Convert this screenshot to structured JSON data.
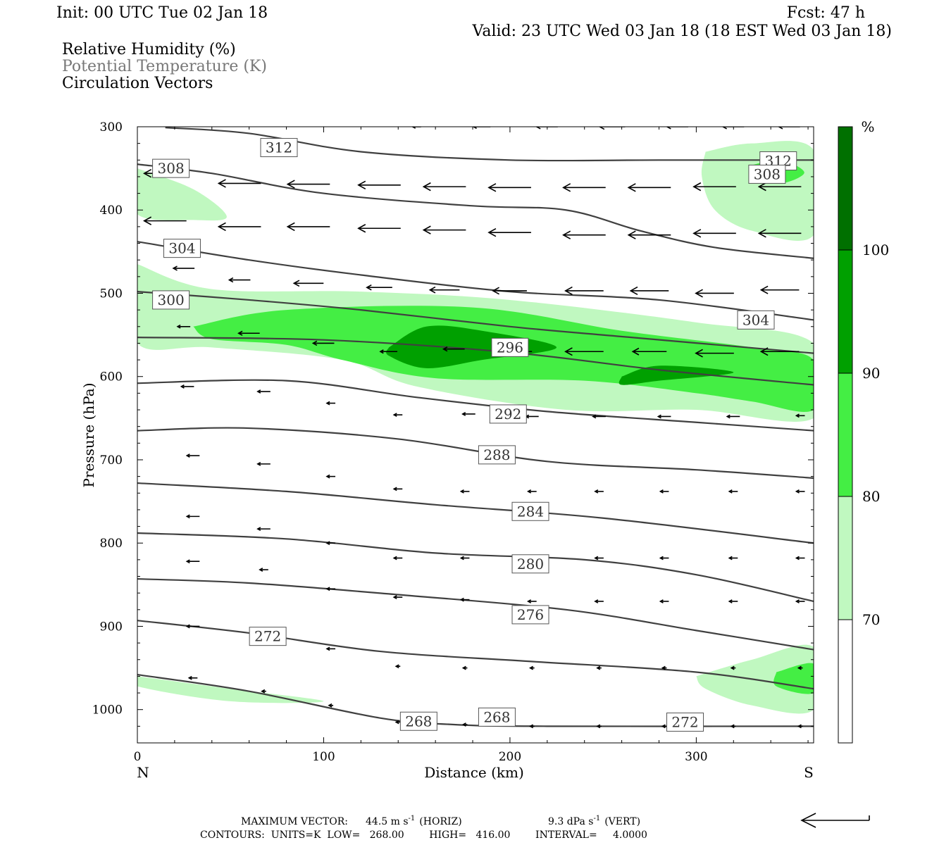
{
  "header": {
    "init": "Init: 00 UTC Tue 02 Jan 18",
    "fcst": "Fcst:   47 h",
    "valid": "Valid: 23 UTC Wed 03 Jan 18 (18 EST Wed 03 Jan 18)",
    "fields": [
      "Relative Humidity (%)",
      "Potential Temperature (K)",
      "Circulation Vectors"
    ]
  },
  "colors": {
    "rh_70": "#c0f8c0",
    "rh_80": "#44ee44",
    "rh_90": "#00a000",
    "rh_100": "#007000",
    "theta_line": "#404040",
    "frame": "#000000"
  },
  "footer": {
    "max_vector_label": "MAXIMUM VECTOR:",
    "horiz_value": "44.5 m s",
    "horiz_unit": "(HORIZ)",
    "vert_value": "9.3 dPa s",
    "vert_unit": "(VERT)",
    "sup": "-1",
    "contours_line": "CONTOURS:  UNITS=K  LOW=   268.00        HIGH=   416.00        INTERVAL=     4.0000"
  },
  "chart_data": {
    "type": "contour",
    "xlabel": "Distance (km)",
    "ylabel": "Pressure (hPa)",
    "xlim": [
      0,
      363
    ],
    "ylim": [
      1040,
      300
    ],
    "x_ticks": [
      0,
      100,
      200,
      300
    ],
    "y_ticks": [
      300,
      400,
      500,
      600,
      700,
      800,
      900,
      1000
    ],
    "x_end_labels": {
      "left": "N",
      "right": "S"
    },
    "colorbar": {
      "unit": "%",
      "levels": [
        70,
        80,
        90,
        100
      ],
      "tick_labels": [
        "70",
        "80",
        "90",
        "100"
      ]
    },
    "theta_contours": [
      {
        "value": 312,
        "label": "312",
        "label_at": [
          76,
          325
        ],
        "points": [
          [
            15,
            301
          ],
          [
            60,
            308
          ],
          [
            120,
            330
          ],
          [
            200,
            340
          ],
          [
            280,
            340
          ],
          [
            363,
            340
          ]
        ]
      },
      {
        "value": 312,
        "label": "312",
        "label_at": [
          344,
          341
        ],
        "points": []
      },
      {
        "value": 308,
        "label": "308",
        "label_at": [
          18,
          350
        ],
        "points": [
          [
            0,
            345
          ],
          [
            40,
            356
          ],
          [
            100,
            380
          ],
          [
            180,
            395
          ],
          [
            230,
            400
          ],
          [
            270,
            425
          ],
          [
            310,
            445
          ],
          [
            363,
            458
          ]
        ]
      },
      {
        "value": 308,
        "label": "308",
        "label_at": [
          338,
          357
        ],
        "points": []
      },
      {
        "value": 304,
        "label": "304",
        "label_at": [
          24,
          446
        ],
        "points": [
          [
            0,
            438
          ],
          [
            60,
            460
          ],
          [
            120,
            478
          ],
          [
            200,
            498
          ],
          [
            280,
            508
          ],
          [
            363,
            532
          ]
        ]
      },
      {
        "value": 304,
        "label": "304",
        "label_at": [
          332,
          532
        ],
        "points": []
      },
      {
        "value": 300,
        "label": "300",
        "label_at": [
          18,
          508
        ],
        "points": [
          [
            0,
            498
          ],
          [
            60,
            508
          ],
          [
            120,
            520
          ],
          [
            200,
            540
          ],
          [
            260,
            552
          ],
          [
            363,
            572
          ]
        ]
      },
      {
        "value": 296,
        "label": "296",
        "label_at": [
          200,
          565
        ],
        "points": [
          [
            0,
            553
          ],
          [
            100,
            556
          ],
          [
            200,
            571
          ],
          [
            280,
            592
          ],
          [
            363,
            610
          ]
        ]
      },
      {
        "value": 292,
        "label": "292",
        "label_at": [
          199,
          645
        ],
        "points": [
          [
            0,
            608
          ],
          [
            80,
            605
          ],
          [
            150,
            625
          ],
          [
            220,
            642
          ],
          [
            300,
            655
          ],
          [
            363,
            665
          ]
        ]
      },
      {
        "value": 288,
        "label": "288",
        "label_at": [
          193,
          694
        ],
        "points": [
          [
            0,
            665
          ],
          [
            60,
            662
          ],
          [
            140,
            675
          ],
          [
            220,
            702
          ],
          [
            300,
            712
          ],
          [
            363,
            722
          ]
        ]
      },
      {
        "value": 284,
        "label": "284",
        "label_at": [
          211,
          762
        ],
        "points": [
          [
            0,
            728
          ],
          [
            80,
            738
          ],
          [
            160,
            754
          ],
          [
            250,
            770
          ],
          [
            363,
            800
          ]
        ]
      },
      {
        "value": 280,
        "label": "280",
        "label_at": [
          211,
          825
        ],
        "points": [
          [
            0,
            788
          ],
          [
            80,
            795
          ],
          [
            160,
            812
          ],
          [
            240,
            820
          ],
          [
            300,
            838
          ],
          [
            363,
            870
          ]
        ]
      },
      {
        "value": 276,
        "label": "276",
        "label_at": [
          211,
          886
        ],
        "points": [
          [
            0,
            843
          ],
          [
            60,
            848
          ],
          [
            140,
            862
          ],
          [
            230,
            880
          ],
          [
            300,
            905
          ],
          [
            363,
            928
          ]
        ]
      },
      {
        "value": 272,
        "label": "272",
        "label_at": [
          70,
          912
        ],
        "points": [
          [
            0,
            893
          ],
          [
            60,
            908
          ],
          [
            130,
            930
          ],
          [
            210,
            942
          ],
          [
            300,
            955
          ],
          [
            363,
            975
          ]
        ]
      },
      {
        "value": 272,
        "label": "272",
        "label_at": [
          294,
          1015
        ],
        "points": []
      },
      {
        "value": 268,
        "label": "268",
        "label_at": [
          151,
          1014
        ],
        "points": [
          [
            0,
            958
          ],
          [
            60,
            978
          ],
          [
            130,
            1010
          ],
          [
            170,
            1018
          ],
          [
            220,
            1020
          ],
          [
            363,
            1020
          ]
        ]
      },
      {
        "value": 268,
        "label": "268",
        "label_at": [
          193,
          1009
        ],
        "points": []
      }
    ],
    "rh_regions": [
      {
        "level": 70,
        "points": [
          [
            0,
            350
          ],
          [
            30,
            375
          ],
          [
            48,
            408
          ],
          [
            30,
            412
          ],
          [
            0,
            405
          ]
        ]
      },
      {
        "level": 70,
        "points": [
          [
            0,
            465
          ],
          [
            40,
            495
          ],
          [
            120,
            498
          ],
          [
            200,
            508
          ],
          [
            300,
            535
          ],
          [
            363,
            560
          ],
          [
            363,
            650
          ],
          [
            300,
            640
          ],
          [
            230,
            640
          ],
          [
            150,
            612
          ],
          [
            110,
            580
          ],
          [
            40,
            565
          ],
          [
            0,
            560
          ]
        ]
      },
      {
        "level": 70,
        "points": [
          [
            305,
            330
          ],
          [
            330,
            320
          ],
          [
            363,
            328
          ],
          [
            363,
            430
          ],
          [
            330,
            425
          ],
          [
            310,
            400
          ],
          [
            303,
            360
          ]
        ]
      },
      {
        "level": 70,
        "points": [
          [
            0,
            960
          ],
          [
            50,
            975
          ],
          [
            100,
            990
          ],
          [
            50,
            990
          ],
          [
            0,
            972
          ]
        ]
      },
      {
        "level": 70,
        "points": [
          [
            300,
            960
          ],
          [
            330,
            940
          ],
          [
            363,
            925
          ],
          [
            363,
            1000
          ],
          [
            330,
            995
          ],
          [
            305,
            975
          ]
        ]
      },
      {
        "level": 80,
        "points": [
          [
            30,
            540
          ],
          [
            80,
            520
          ],
          [
            180,
            517
          ],
          [
            260,
            545
          ],
          [
            330,
            565
          ],
          [
            363,
            580
          ],
          [
            363,
            640
          ],
          [
            330,
            630
          ],
          [
            300,
            620
          ],
          [
            240,
            605
          ],
          [
            160,
            602
          ],
          [
            110,
            580
          ],
          [
            80,
            562
          ],
          [
            40,
            555
          ]
        ]
      },
      {
        "level": 80,
        "points": [
          [
            330,
            346
          ],
          [
            345,
            340
          ],
          [
            358,
            355
          ],
          [
            345,
            368
          ],
          [
            330,
            358
          ]
        ]
      },
      {
        "level": 80,
        "points": [
          [
            343,
            955
          ],
          [
            363,
            945
          ],
          [
            363,
            980
          ],
          [
            343,
            972
          ]
        ]
      },
      {
        "level": 90,
        "points": [
          [
            135,
            565
          ],
          [
            155,
            540
          ],
          [
            185,
            545
          ],
          [
            225,
            565
          ],
          [
            185,
            580
          ],
          [
            155,
            590
          ],
          [
            135,
            575
          ]
        ]
      },
      {
        "level": 90,
        "points": [
          [
            260,
            600
          ],
          [
            280,
            587
          ],
          [
            320,
            595
          ],
          [
            280,
            605
          ],
          [
            260,
            610
          ]
        ]
      }
    ],
    "vectors": [
      [
        15,
        356,
        -1
      ],
      [
        55,
        368,
        -1
      ],
      [
        92,
        369,
        -1
      ],
      [
        130,
        370,
        -1
      ],
      [
        165,
        372,
        -1
      ],
      [
        200,
        373,
        -1
      ],
      [
        240,
        373,
        -1
      ],
      [
        275,
        373,
        -1
      ],
      [
        310,
        372,
        -1
      ],
      [
        345,
        372,
        -1
      ],
      [
        15,
        413,
        -1
      ],
      [
        55,
        420,
        -1
      ],
      [
        92,
        420,
        -1
      ],
      [
        130,
        422,
        -1
      ],
      [
        165,
        424,
        -1
      ],
      [
        200,
        427,
        -1
      ],
      [
        240,
        430,
        -1
      ],
      [
        275,
        430,
        -1
      ],
      [
        310,
        428,
        -1
      ],
      [
        345,
        428,
        -1
      ],
      [
        25,
        470,
        -0.5
      ],
      [
        55,
        484,
        -0.5
      ],
      [
        92,
        488,
        -0.7
      ],
      [
        130,
        493,
        -0.6
      ],
      [
        165,
        496,
        -0.7
      ],
      [
        200,
        497,
        -0.8
      ],
      [
        240,
        497,
        -0.9
      ],
      [
        275,
        497,
        -0.9
      ],
      [
        310,
        500,
        -0.9
      ],
      [
        345,
        496,
        -0.9
      ],
      [
        25,
        540,
        -0.3
      ],
      [
        60,
        548,
        -0.5
      ],
      [
        100,
        560,
        -0.5
      ],
      [
        135,
        570,
        -0.4
      ],
      [
        170,
        567,
        -0.5
      ],
      [
        205,
        570,
        -0.6
      ],
      [
        240,
        570,
        -0.9
      ],
      [
        275,
        570,
        -0.8
      ],
      [
        310,
        572,
        -0.9
      ],
      [
        345,
        570,
        -0.9
      ],
      [
        27,
        612,
        -0.3
      ],
      [
        68,
        618,
        -0.3
      ],
      [
        104,
        632,
        -0.2
      ],
      [
        140,
        646,
        -0.2
      ],
      [
        178,
        645,
        -0.3
      ],
      [
        212,
        648,
        -0.3
      ],
      [
        248,
        648,
        -0.3
      ],
      [
        283,
        648,
        -0.3
      ],
      [
        320,
        648,
        -0.3
      ],
      [
        356,
        647,
        -0.2
      ],
      [
        30,
        695,
        -0.3
      ],
      [
        68,
        705,
        -0.3
      ],
      [
        104,
        720,
        -0.2
      ],
      [
        140,
        735,
        -0.2
      ],
      [
        176,
        738,
        -0.2
      ],
      [
        212,
        738,
        -0.2
      ],
      [
        248,
        738,
        -0.2
      ],
      [
        283,
        738,
        -0.2
      ],
      [
        320,
        738,
        -0.2
      ],
      [
        356,
        738,
        -0.2
      ],
      [
        30,
        768,
        -0.3
      ],
      [
        68,
        783,
        -0.3
      ],
      [
        104,
        800,
        -0.2
      ],
      [
        140,
        818,
        -0.2
      ],
      [
        176,
        818,
        -0.2
      ],
      [
        212,
        818,
        -0.2
      ],
      [
        248,
        818,
        -0.2
      ],
      [
        283,
        818,
        -0.2
      ],
      [
        320,
        818,
        -0.2
      ],
      [
        356,
        818,
        -0.2
      ],
      [
        30,
        822,
        -0.3
      ],
      [
        68,
        832,
        -0.2
      ],
      [
        104,
        855,
        -0.2
      ],
      [
        140,
        865,
        -0.2
      ],
      [
        176,
        868,
        -0.2
      ],
      [
        212,
        870,
        -0.2
      ],
      [
        248,
        870,
        -0.2
      ],
      [
        283,
        870,
        -0.2
      ],
      [
        320,
        870,
        -0.2
      ],
      [
        356,
        870,
        -0.2
      ],
      [
        30,
        900,
        -0.3
      ],
      [
        68,
        915,
        -0.2
      ],
      [
        104,
        927,
        -0.2
      ],
      [
        140,
        948,
        -0.1
      ],
      [
        176,
        950,
        -0.1
      ],
      [
        212,
        950,
        -0.1
      ],
      [
        248,
        950,
        -0.1
      ],
      [
        283,
        950,
        -0.1
      ],
      [
        320,
        950,
        -0.1
      ],
      [
        356,
        950,
        -0.1
      ],
      [
        30,
        962,
        -0.2
      ],
      [
        68,
        978,
        -0.1
      ],
      [
        104,
        995,
        -0.1
      ],
      [
        140,
        1015,
        -0.1
      ],
      [
        176,
        1018,
        -0.1
      ],
      [
        212,
        1020,
        -0.1
      ],
      [
        248,
        1020,
        -0.1
      ],
      [
        283,
        1020,
        -0.1
      ],
      [
        320,
        1020,
        -0.1
      ],
      [
        356,
        1020,
        -0.1
      ],
      [
        150,
        300,
        -0.2
      ],
      [
        185,
        300,
        -0.4
      ],
      [
        220,
        300,
        -0.5
      ],
      [
        255,
        300,
        -0.6
      ],
      [
        290,
        300,
        -0.5
      ],
      [
        320,
        300,
        -0.5
      ],
      [
        350,
        300,
        -0.5
      ]
    ]
  }
}
